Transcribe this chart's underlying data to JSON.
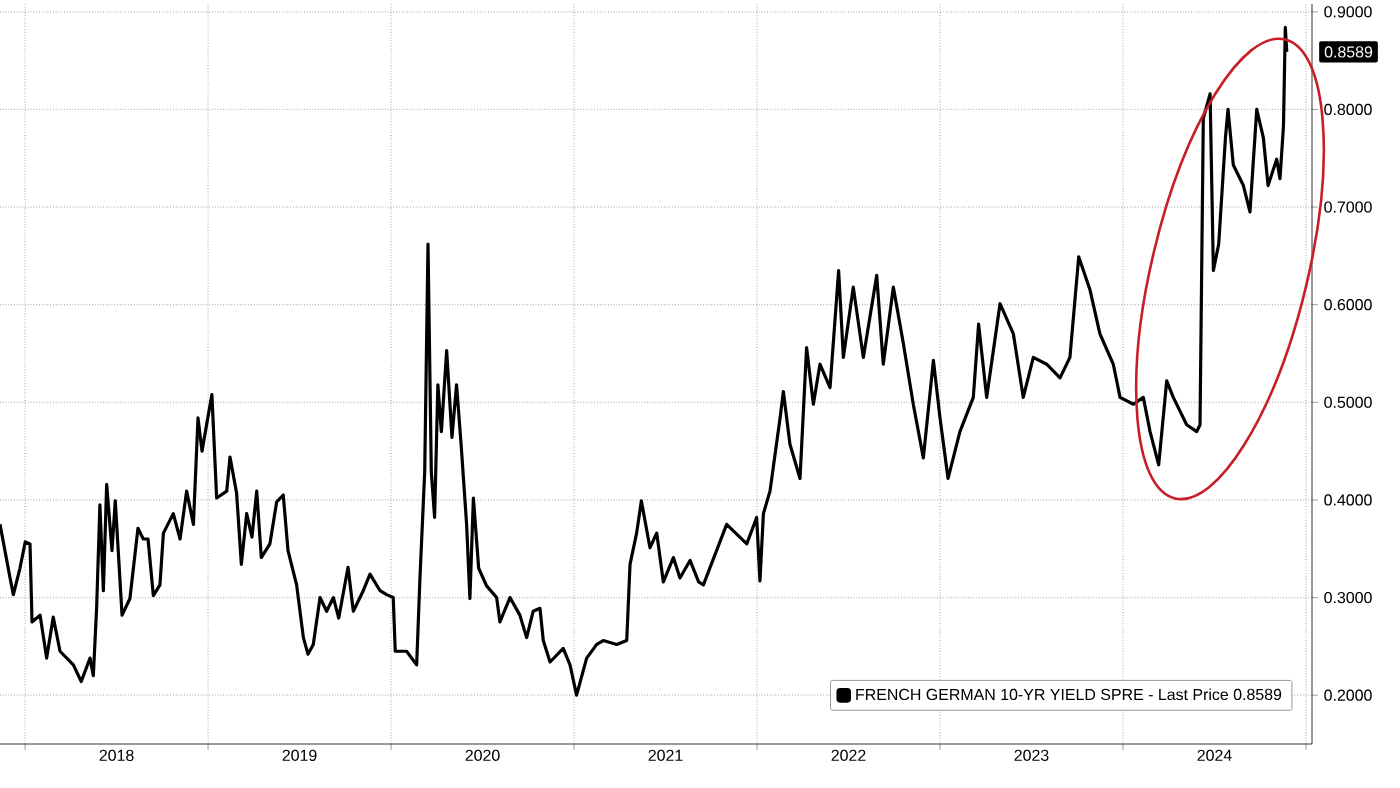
{
  "chart_data": {
    "type": "line",
    "series": [
      {
        "name": "FRENCH GERMAN 10-YR YIELD SPRE - Last Price 0.8589",
        "color": "#000000",
        "x": [
          2017.863,
          2017.918,
          2017.936,
          2017.972,
          2018.001,
          2018.027,
          2018.038,
          2018.082,
          2018.118,
          2018.154,
          2018.191,
          2018.264,
          2018.307,
          2018.355,
          2018.373,
          2018.391,
          2018.409,
          2018.428,
          2018.446,
          2018.475,
          2018.493,
          2018.53,
          2018.573,
          2018.617,
          2018.646,
          2018.672,
          2018.701,
          2018.737,
          2018.756,
          2018.81,
          2018.847,
          2018.883,
          2018.92,
          2018.945,
          2018.967,
          2018.992,
          2019.021,
          2019.047,
          2019.102,
          2019.12,
          2019.156,
          2019.182,
          2019.211,
          2019.24,
          2019.266,
          2019.291,
          2019.338,
          2019.375,
          2019.411,
          2019.437,
          2019.484,
          2019.521,
          2019.546,
          2019.575,
          2019.612,
          2019.648,
          2019.685,
          2019.714,
          2019.765,
          2019.794,
          2019.848,
          2019.885,
          2019.94,
          2019.976,
          2020.012,
          2020.023,
          2020.085,
          2020.14,
          2020.158,
          2020.184,
          2020.202,
          2020.22,
          2020.238,
          2020.256,
          2020.275,
          2020.304,
          2020.333,
          2020.358,
          2020.384,
          2020.413,
          2020.431,
          2020.45,
          2020.479,
          2020.522,
          2020.577,
          2020.595,
          2020.65,
          2020.704,
          2020.741,
          2020.777,
          2020.814,
          2020.832,
          2020.869,
          2020.941,
          2020.978,
          2021.014,
          2021.069,
          2021.124,
          2021.16,
          2021.233,
          2021.288,
          2021.306,
          2021.342,
          2021.368,
          2021.415,
          2021.452,
          2021.488,
          2021.543,
          2021.579,
          2021.634,
          2021.681,
          2021.707,
          2021.834,
          2021.944,
          2021.998,
          2022.016,
          2022.035,
          2022.071,
          2022.126,
          2022.144,
          2022.18,
          2022.235,
          2022.271,
          2022.308,
          2022.344,
          2022.399,
          2022.446,
          2022.472,
          2022.526,
          2022.581,
          2022.654,
          2022.69,
          2022.745,
          2022.8,
          2022.854,
          2022.909,
          2022.964,
          2023.0,
          2023.044,
          2023.109,
          2023.182,
          2023.211,
          2023.255,
          2023.328,
          2023.401,
          2023.455,
          2023.51,
          2023.583,
          2023.656,
          2023.71,
          2023.758,
          2023.82,
          2023.874,
          2023.947,
          2023.984,
          2024.057,
          2024.111,
          2024.148,
          2024.195,
          2024.239,
          2024.275,
          2024.348,
          2024.403,
          2024.421,
          2024.439,
          2024.476,
          2024.494,
          2024.523,
          2024.56,
          2024.574,
          2024.603,
          2024.658,
          2024.694,
          2024.731,
          2024.767,
          2024.793,
          2024.84,
          2024.858,
          2024.877,
          2024.887,
          2024.895
        ],
        "values": [
          0.375,
          0.32,
          0.303,
          0.33,
          0.357,
          0.355,
          0.275,
          0.282,
          0.238,
          0.28,
          0.245,
          0.231,
          0.214,
          0.238,
          0.22,
          0.289,
          0.395,
          0.307,
          0.416,
          0.348,
          0.399,
          0.282,
          0.299,
          0.371,
          0.36,
          0.36,
          0.302,
          0.313,
          0.366,
          0.386,
          0.36,
          0.409,
          0.375,
          0.484,
          0.45,
          0.477,
          0.508,
          0.402,
          0.409,
          0.444,
          0.407,
          0.334,
          0.386,
          0.362,
          0.409,
          0.341,
          0.355,
          0.398,
          0.405,
          0.348,
          0.313,
          0.259,
          0.242,
          0.252,
          0.3,
          0.286,
          0.3,
          0.279,
          0.331,
          0.286,
          0.307,
          0.324,
          0.307,
          0.303,
          0.3,
          0.245,
          0.245,
          0.231,
          0.32,
          0.429,
          0.662,
          0.429,
          0.382,
          0.518,
          0.47,
          0.553,
          0.464,
          0.518,
          0.454,
          0.375,
          0.299,
          0.402,
          0.33,
          0.312,
          0.3,
          0.275,
          0.3,
          0.282,
          0.259,
          0.286,
          0.289,
          0.256,
          0.234,
          0.248,
          0.231,
          0.2,
          0.238,
          0.252,
          0.256,
          0.252,
          0.256,
          0.334,
          0.366,
          0.399,
          0.351,
          0.366,
          0.316,
          0.341,
          0.32,
          0.338,
          0.316,
          0.313,
          0.375,
          0.355,
          0.382,
          0.317,
          0.386,
          0.409,
          0.484,
          0.511,
          0.457,
          0.422,
          0.556,
          0.498,
          0.539,
          0.515,
          0.635,
          0.546,
          0.618,
          0.546,
          0.63,
          0.539,
          0.618,
          0.56,
          0.498,
          0.443,
          0.543,
          0.484,
          0.422,
          0.47,
          0.505,
          0.58,
          0.505,
          0.601,
          0.57,
          0.505,
          0.546,
          0.539,
          0.525,
          0.546,
          0.649,
          0.615,
          0.57,
          0.539,
          0.505,
          0.498,
          0.505,
          0.47,
          0.436,
          0.522,
          0.505,
          0.477,
          0.47,
          0.477,
          0.791,
          0.816,
          0.635,
          0.662,
          0.771,
          0.8,
          0.743,
          0.722,
          0.695,
          0.8,
          0.771,
          0.722,
          0.749,
          0.729,
          0.783,
          0.884,
          0.859
        ]
      }
    ],
    "xlim": [
      2017.863,
      2025.033
    ],
    "xticks": [
      {
        "value": 2018,
        "label": null
      },
      {
        "value": 2019,
        "label": null
      },
      {
        "value": 2020,
        "label": null
      },
      {
        "value": 2021,
        "label": null
      },
      {
        "value": 2022,
        "label": null
      },
      {
        "value": 2023,
        "label": null
      },
      {
        "value": 2024,
        "label": null
      },
      {
        "value": 2025,
        "label": null
      },
      {
        "value": 2018.5,
        "label": "2018"
      },
      {
        "value": 2019.5,
        "label": "2019"
      },
      {
        "value": 2020.5,
        "label": "2020"
      },
      {
        "value": 2021.5,
        "label": "2021"
      },
      {
        "value": 2022.5,
        "label": "2022"
      },
      {
        "value": 2023.5,
        "label": "2023"
      },
      {
        "value": 2024.5,
        "label": "2024"
      }
    ],
    "ylim": [
      0.15,
      0.908
    ],
    "yticks": [
      {
        "value": 0.2,
        "label": "0.2000"
      },
      {
        "value": 0.3,
        "label": "0.3000"
      },
      {
        "value": 0.4,
        "label": "0.4000"
      },
      {
        "value": 0.5,
        "label": "0.5000"
      },
      {
        "value": 0.6,
        "label": "0.6000"
      },
      {
        "value": 0.7,
        "label": "0.7000"
      },
      {
        "value": 0.8,
        "label": "0.8000"
      },
      {
        "value": 0.9,
        "label": "0.9000"
      }
    ],
    "grid": true,
    "legend": "bottom right",
    "annotations": [
      {
        "text": "0.8589",
        "x": 2024.895,
        "y": 0.8589
      }
    ]
  }
}
